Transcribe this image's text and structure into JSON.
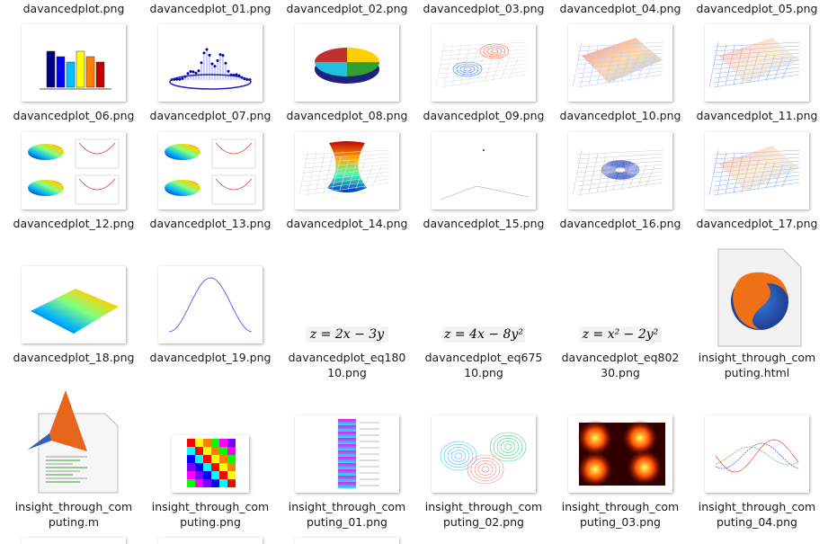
{
  "files": [
    {
      "lines": [
        "davancedplot.png"
      ]
    },
    {
      "lines": [
        "davancedplot_01.png"
      ]
    },
    {
      "lines": [
        "davancedplot_02.png"
      ]
    },
    {
      "lines": [
        "davancedplot_03.png"
      ]
    },
    {
      "lines": [
        "davancedplot_04.png"
      ]
    },
    {
      "lines": [
        "davancedplot_05.png"
      ]
    },
    {
      "lines": [
        "davancedplot_06.png"
      ]
    },
    {
      "lines": [
        "davancedplot_07.png"
      ]
    },
    {
      "lines": [
        "davancedplot_08.png"
      ]
    },
    {
      "lines": [
        "davancedplot_09.png"
      ]
    },
    {
      "lines": [
        "davancedplot_10.png"
      ]
    },
    {
      "lines": [
        "davancedplot_11.png"
      ]
    },
    {
      "lines": [
        "davancedplot_12.png"
      ]
    },
    {
      "lines": [
        "davancedplot_13.png"
      ]
    },
    {
      "lines": [
        "davancedplot_14.png"
      ]
    },
    {
      "lines": [
        "davancedplot_15.png"
      ]
    },
    {
      "lines": [
        "davancedplot_16.png"
      ]
    },
    {
      "lines": [
        "davancedplot_17.png"
      ]
    },
    {
      "lines": [
        "davancedplot_18.png"
      ]
    },
    {
      "lines": [
        "davancedplot_19.png"
      ]
    },
    {
      "lines": [
        "davancedplot_eq180",
        "10.png"
      ],
      "equation": "z = 2x − 3y"
    },
    {
      "lines": [
        "davancedplot_eq675",
        "10.png"
      ],
      "equation": "z = 4x − 8y²"
    },
    {
      "lines": [
        "davancedplot_eq802",
        "30.png"
      ],
      "equation": "z = x² − 2y²"
    },
    {
      "lines": [
        "insight_through_com",
        "puting.html"
      ]
    },
    {
      "lines": [
        "insight_through_com",
        "puting.m"
      ]
    },
    {
      "lines": [
        "insight_through_com",
        "puting.png"
      ]
    },
    {
      "lines": [
        "insight_through_com",
        "puting_01.png"
      ]
    },
    {
      "lines": [
        "insight_through_com",
        "puting_02.png"
      ]
    },
    {
      "lines": [
        "insight_through_com",
        "puting_03.png"
      ]
    },
    {
      "lines": [
        "insight_through_com",
        "puting_04.png"
      ]
    }
  ]
}
